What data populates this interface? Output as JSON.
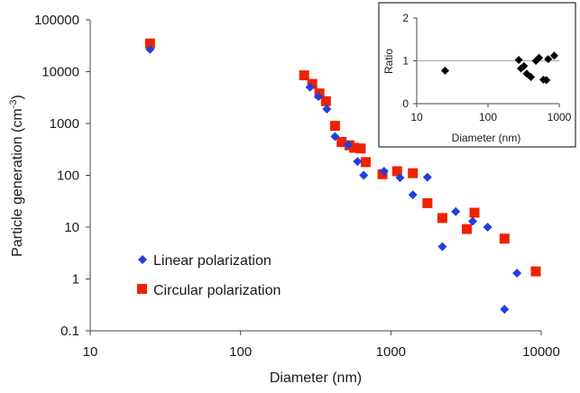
{
  "chart_data": [
    {
      "type": "scatter",
      "title": "",
      "xlabel": "Diameter (nm)",
      "ylabel": "Particle generation (cm",
      "ylabel_sup": "-3",
      "ylabel_end": ")",
      "xscale": "log",
      "yscale": "log",
      "xlim": [
        10,
        10000
      ],
      "ylim": [
        0.1,
        100000
      ],
      "xticks": [
        "10",
        "100",
        "1000",
        "10000"
      ],
      "yticks": [
        "0.1",
        "1",
        "10",
        "100",
        "1000",
        "10000",
        "100000"
      ],
      "grid": false,
      "legend_position": "bottom-left",
      "series": [
        {
          "name": "Linear polarization",
          "color": "#1f3fe0",
          "marker": "diamond",
          "points": [
            [
              25,
              27000
            ],
            [
              290,
              5000
            ],
            [
              330,
              3300
            ],
            [
              375,
              1900
            ],
            [
              425,
              560
            ],
            [
              520,
              390
            ],
            [
              600,
              185
            ],
            [
              660,
              100
            ],
            [
              900,
              120
            ],
            [
              1150,
              90
            ],
            [
              1400,
              42
            ],
            [
              1750,
              92
            ],
            [
              2200,
              4.2
            ],
            [
              2700,
              20
            ],
            [
              3500,
              13
            ],
            [
              4400,
              10
            ],
            [
              5700,
              0.26
            ],
            [
              6900,
              1.3
            ]
          ]
        },
        {
          "name": "Circular polarization",
          "color": "#ee2200",
          "marker": "square",
          "points": [
            [
              25,
              35000
            ],
            [
              265,
              8500
            ],
            [
              300,
              5800
            ],
            [
              335,
              3800
            ],
            [
              370,
              2700
            ],
            [
              425,
              900
            ],
            [
              470,
              440
            ],
            [
              530,
              380
            ],
            [
              570,
              340
            ],
            [
              630,
              330
            ],
            [
              680,
              180
            ],
            [
              880,
              105
            ],
            [
              1100,
              120
            ],
            [
              1400,
              110
            ],
            [
              1750,
              29
            ],
            [
              2200,
              15
            ],
            [
              3200,
              9.2
            ],
            [
              3600,
              19
            ],
            [
              5700,
              6
            ],
            [
              9200,
              1.4
            ]
          ]
        }
      ]
    },
    {
      "type": "scatter",
      "title": "",
      "xlabel": "Diameter (nm)",
      "ylabel": "Ratio",
      "xscale": "log",
      "xlim": [
        10,
        1000
      ],
      "ylim": [
        0,
        2
      ],
      "xticks": [
        "10",
        "100",
        "1000"
      ],
      "yticks": [
        "0",
        "1",
        "2"
      ],
      "reference_line": 1,
      "series": [
        {
          "color": "#000000",
          "marker": "diamond",
          "points": [
            [
              25,
              0.77
            ],
            [
              270,
              1.02
            ],
            [
              290,
              0.82
            ],
            [
              320,
              0.88
            ],
            [
              350,
              0.7
            ],
            [
              400,
              0.62
            ],
            [
              470,
              1.0
            ],
            [
              520,
              1.07
            ],
            [
              600,
              0.56
            ],
            [
              660,
              0.55
            ],
            [
              700,
              1.04
            ],
            [
              850,
              1.12
            ]
          ]
        }
      ]
    }
  ]
}
